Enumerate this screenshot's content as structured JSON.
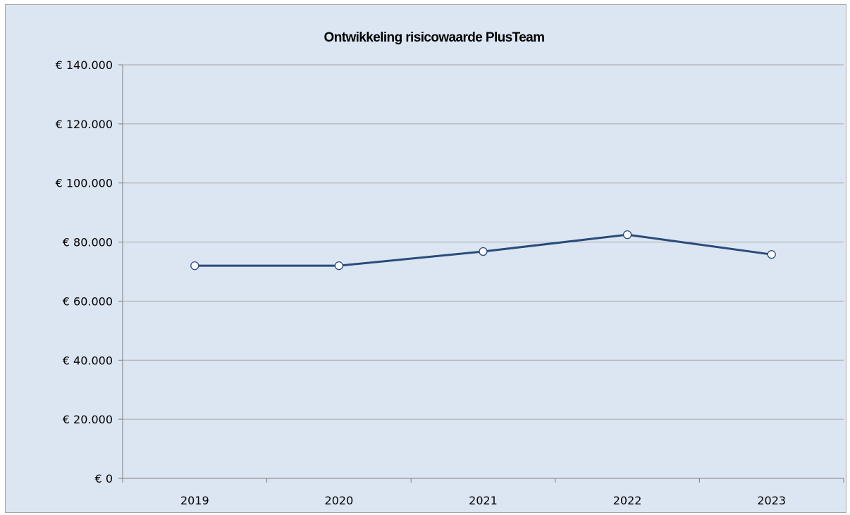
{
  "chart_data": {
    "type": "line",
    "title": "Ontwikkeling risicowaarde PlusTeam",
    "xlabel": "",
    "ylabel": "",
    "categories": [
      "2019",
      "2020",
      "2021",
      "2022",
      "2023"
    ],
    "series": [
      {
        "values": [
          72000,
          72000,
          76800,
          82500,
          75800
        ]
      }
    ],
    "ylim": [
      0,
      140000
    ],
    "yticks": [
      0,
      20000,
      40000,
      60000,
      80000,
      100000,
      120000,
      140000
    ],
    "ytick_labels": [
      "€ 0",
      "€ 20.000",
      "€ 40.000",
      "€ 60.000",
      "€ 80.000",
      "€ 100.000",
      "€ 120.000",
      "€ 140.000"
    ],
    "grid": "horizontal",
    "legend": "none",
    "colors": {
      "background": "#dce6f2",
      "line": "#2a4b7c",
      "marker_fill": "#ffffff",
      "gridline": "#a6a6a6",
      "axis": "#7f7f7f"
    }
  }
}
